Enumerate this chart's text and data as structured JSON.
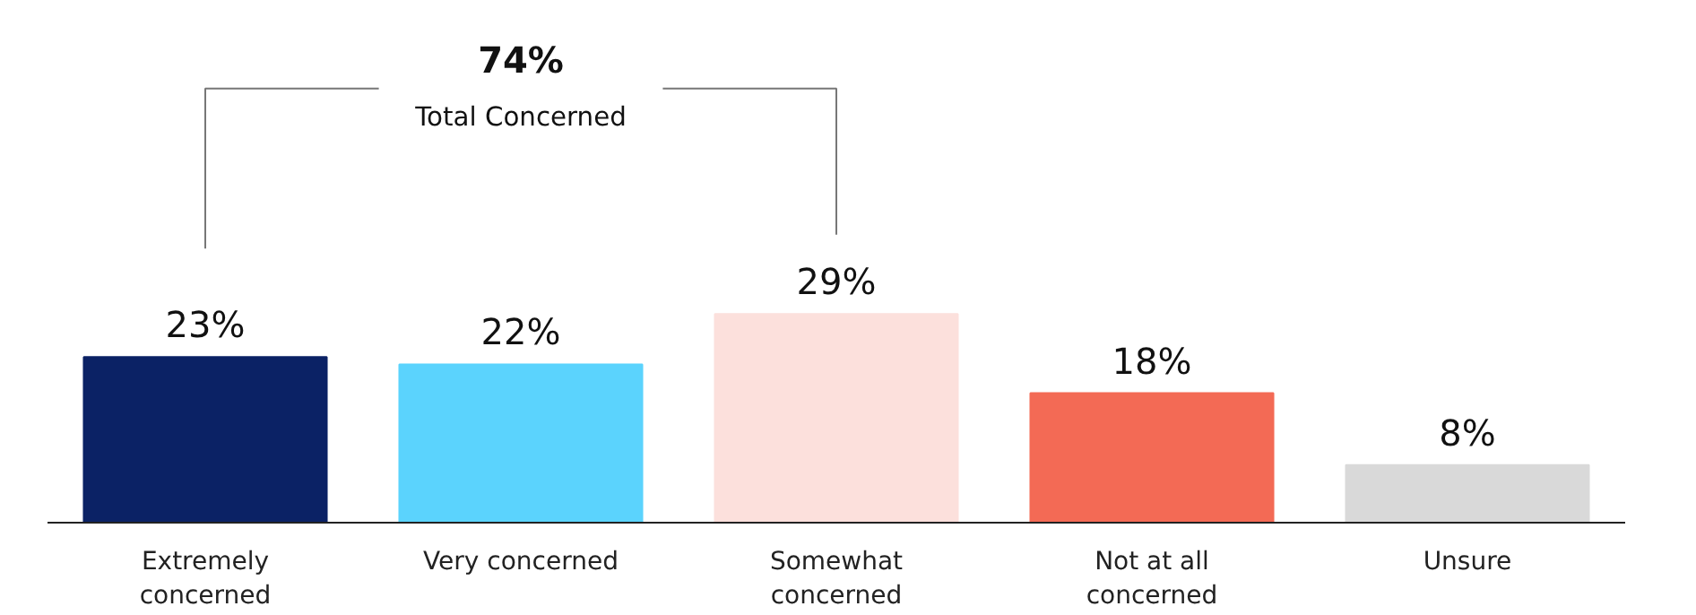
{
  "chart_data": {
    "type": "bar",
    "categories": [
      "Extremely concerned",
      "Very concerned",
      "Somewhat concerned",
      "Not at all concerned",
      "Unsure"
    ],
    "values": [
      23,
      22,
      29,
      18,
      8
    ],
    "colors": [
      "#0b2265",
      "#5bd3fd",
      "#fce0dc",
      "#f36a55",
      "#d9d9d9"
    ],
    "value_labels": [
      "23%",
      "22%",
      "29%",
      "18%",
      "8%"
    ],
    "grid": false,
    "annotations": [
      "74%",
      "Total Concerned"
    ]
  }
}
